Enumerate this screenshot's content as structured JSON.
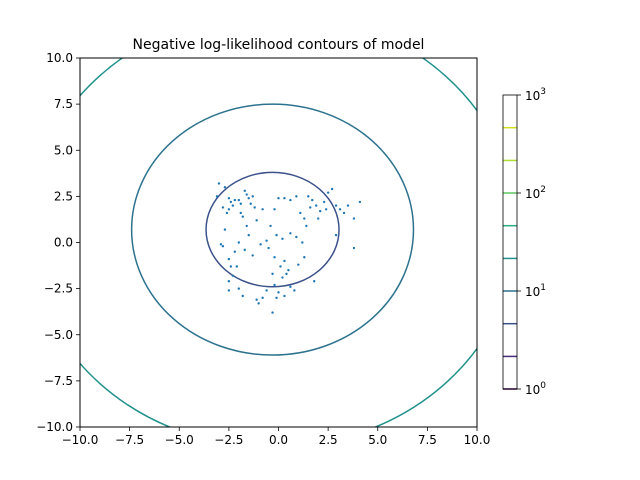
{
  "chart_data": {
    "type": "contour",
    "title": "Negative log-likelihood contours of model",
    "xlim": [
      -10,
      10
    ],
    "ylim": [
      -10,
      10
    ],
    "xticks": [
      -10,
      -7.5,
      -5,
      -2.5,
      0,
      2.5,
      5,
      7.5,
      10
    ],
    "xtick_labels": [
      "−10.0",
      "−7.5",
      "−5.0",
      "−2.5",
      "0.0",
      "2.5",
      "5.0",
      "7.5",
      "10.0"
    ],
    "yticks": [
      -10,
      -7.5,
      -5,
      -2.5,
      0,
      2.5,
      5,
      7.5,
      10
    ],
    "ytick_labels": [
      "−10.0",
      "−7.5",
      "−5.0",
      "−2.5",
      "0.0",
      "2.5",
      "5.0",
      "7.5",
      "10.0"
    ],
    "grid": false,
    "point_color": "#1f77b4",
    "contours": [
      {
        "center": [
          -0.3,
          0.7
        ],
        "radius": [
          3.35,
          3.1
        ],
        "color": "#3b528b"
      },
      {
        "center": [
          -0.3,
          0.7
        ],
        "radius": [
          7.1,
          6.8
        ],
        "color": "#2c728e"
      },
      {
        "center": [
          -0.3,
          0.7
        ],
        "radius": [
          12.3,
          11.8
        ],
        "color": "#21918c"
      }
    ],
    "points": [
      [
        -3.0,
        3.2
      ],
      [
        -2.7,
        3.0
      ],
      [
        -2.5,
        2.4
      ],
      [
        -2.4,
        2.2
      ],
      [
        -2.3,
        2.0
      ],
      [
        -2.2,
        2.3
      ],
      [
        -2.0,
        2.3
      ],
      [
        -1.9,
        2.1
      ],
      [
        -1.7,
        2.8
      ],
      [
        -1.6,
        2.6
      ],
      [
        -1.5,
        2.4
      ],
      [
        -1.4,
        2.1
      ],
      [
        -1.3,
        2.5
      ],
      [
        -1.9,
        1.6
      ],
      [
        -1.8,
        1.4
      ],
      [
        -2.5,
        1.8
      ],
      [
        -2.8,
        1.9
      ],
      [
        -3.1,
        2.5
      ],
      [
        -2.6,
        1.6
      ],
      [
        -1.1,
        1.2
      ],
      [
        -0.8,
        1.8
      ],
      [
        -0.2,
        1.8
      ],
      [
        0.0,
        2.4
      ],
      [
        0.3,
        2.4
      ],
      [
        0.6,
        2.3
      ],
      [
        0.9,
        2.5
      ],
      [
        1.1,
        1.6
      ],
      [
        1.3,
        1.3
      ],
      [
        1.4,
        0.9
      ],
      [
        1.6,
        1.9
      ],
      [
        1.7,
        2.3
      ],
      [
        1.9,
        2.0
      ],
      [
        2.1,
        1.7
      ],
      [
        2.3,
        2.2
      ],
      [
        2.4,
        1.8
      ],
      [
        2.5,
        2.7
      ],
      [
        2.7,
        2.9
      ],
      [
        2.9,
        2.0
      ],
      [
        3.1,
        1.8
      ],
      [
        3.3,
        1.6
      ],
      [
        3.5,
        2.0
      ],
      [
        3.8,
        1.3
      ],
      [
        4.1,
        2.2
      ],
      [
        3.8,
        -0.3
      ],
      [
        2.9,
        0.4
      ],
      [
        -0.4,
        0.9
      ],
      [
        -0.1,
        0.4
      ],
      [
        0.2,
        0.2
      ],
      [
        0.6,
        0.5
      ],
      [
        0.9,
        0.3
      ],
      [
        1.2,
        0.0
      ],
      [
        1.3,
        -0.8
      ],
      [
        1.0,
        -1.2
      ],
      [
        0.4,
        -1.7
      ],
      [
        0.1,
        -1.3
      ],
      [
        -0.2,
        -0.8
      ],
      [
        -0.5,
        -0.3
      ],
      [
        -0.9,
        -0.1
      ],
      [
        -1.3,
        -0.7
      ],
      [
        -1.7,
        -0.4
      ],
      [
        -2.0,
        0.0
      ],
      [
        -2.2,
        -0.5
      ],
      [
        -2.5,
        -0.9
      ],
      [
        -2.8,
        -0.2
      ],
      [
        -2.9,
        -0.1
      ],
      [
        -2.1,
        -1.3
      ],
      [
        -2.3,
        -1.8
      ],
      [
        -2.5,
        -2.1
      ],
      [
        -2.0,
        -2.5
      ],
      [
        -2.5,
        -2.6
      ],
      [
        -1.8,
        -2.9
      ],
      [
        -0.8,
        -3.0
      ],
      [
        -0.6,
        -2.6
      ],
      [
        -0.2,
        -2.3
      ],
      [
        0.0,
        -2.7
      ],
      [
        0.3,
        -2.9
      ],
      [
        0.6,
        -2.4
      ],
      [
        -0.1,
        -3.0
      ],
      [
        -1.0,
        -3.3
      ],
      [
        -1.1,
        -3.1
      ],
      [
        -0.3,
        -3.8
      ],
      [
        0.2,
        -1.9
      ],
      [
        0.5,
        -1.5
      ],
      [
        0.8,
        -2.6
      ],
      [
        1.8,
        -2.1
      ],
      [
        -1.5,
        0.4
      ],
      [
        -0.6,
        0.1
      ],
      [
        -1.6,
        0.9
      ],
      [
        -2.7,
        0.7
      ],
      [
        -0.3,
        -1.7
      ],
      [
        -2.4,
        -1.3
      ],
      [
        0.3,
        -1.0
      ],
      [
        -1.2,
        1.9
      ],
      [
        1.5,
        2.5
      ],
      [
        2.0,
        1.3
      ]
    ],
    "colorbar": {
      "scale": "log",
      "range": [
        1,
        1000
      ],
      "tick_labels": [
        {
          "value": 1,
          "base": "10",
          "exp": "0"
        },
        {
          "value": 10,
          "base": "10",
          "exp": "1"
        },
        {
          "value": 100,
          "base": "10",
          "exp": "2"
        },
        {
          "value": 1000,
          "base": "10",
          "exp": "3"
        }
      ],
      "levels": [
        {
          "value": 1.0,
          "color": "#440154"
        },
        {
          "value": 2.15,
          "color": "#472c7a"
        },
        {
          "value": 4.64,
          "color": "#3b528b"
        },
        {
          "value": 10.0,
          "color": "#2c728e"
        },
        {
          "value": 21.5,
          "color": "#21918c"
        },
        {
          "value": 46.4,
          "color": "#28ae80"
        },
        {
          "value": 100,
          "color": "#5ec962"
        },
        {
          "value": 215,
          "color": "#addc30"
        },
        {
          "value": 464,
          "color": "#d0e11c"
        }
      ]
    }
  }
}
